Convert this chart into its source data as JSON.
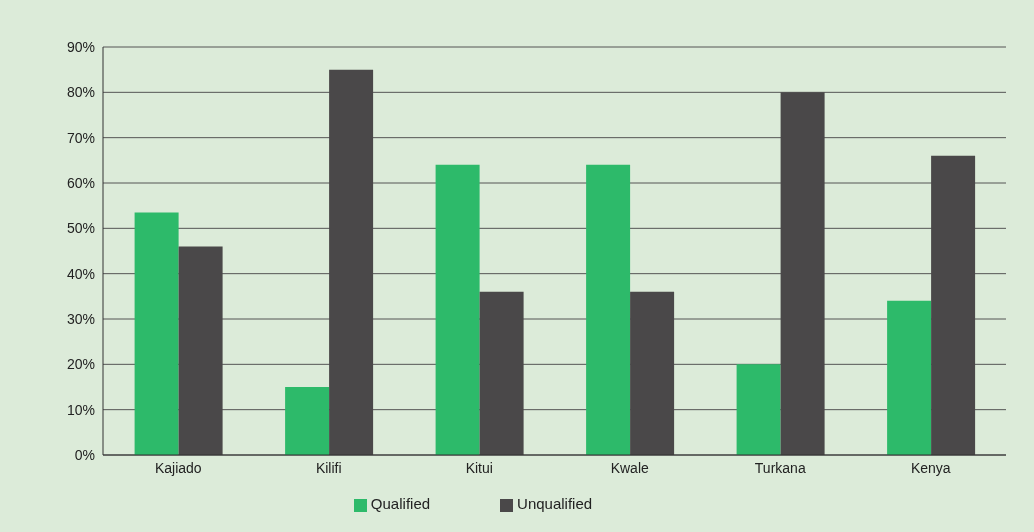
{
  "chart_data": {
    "type": "bar",
    "categories": [
      "Kajiado",
      "Kilifi",
      "Kitui",
      "Kwale",
      "Turkana",
      "Kenya"
    ],
    "series": [
      {
        "name": "Qualified",
        "color": "#2dba6a",
        "values": [
          53.5,
          15,
          64,
          64,
          20,
          34
        ]
      },
      {
        "name": "Unqualified",
        "color": "#4a4849",
        "values": [
          46,
          85,
          36,
          36,
          80,
          66
        ]
      }
    ],
    "ylim": [
      0,
      90
    ],
    "yticks": [
      {
        "value": 0,
        "label": "0%"
      },
      {
        "value": 10,
        "label": "10%"
      },
      {
        "value": 20,
        "label": "20%"
      },
      {
        "value": 30,
        "label": "30%"
      },
      {
        "value": 40,
        "label": "40%"
      },
      {
        "value": 50,
        "label": "50%"
      },
      {
        "value": 60,
        "label": "60%"
      },
      {
        "value": 70,
        "label": "70%"
      },
      {
        "value": 80,
        "label": "80%"
      },
      {
        "value": 90,
        "label": "90%"
      }
    ],
    "grid": "y",
    "legend": "bottom"
  }
}
